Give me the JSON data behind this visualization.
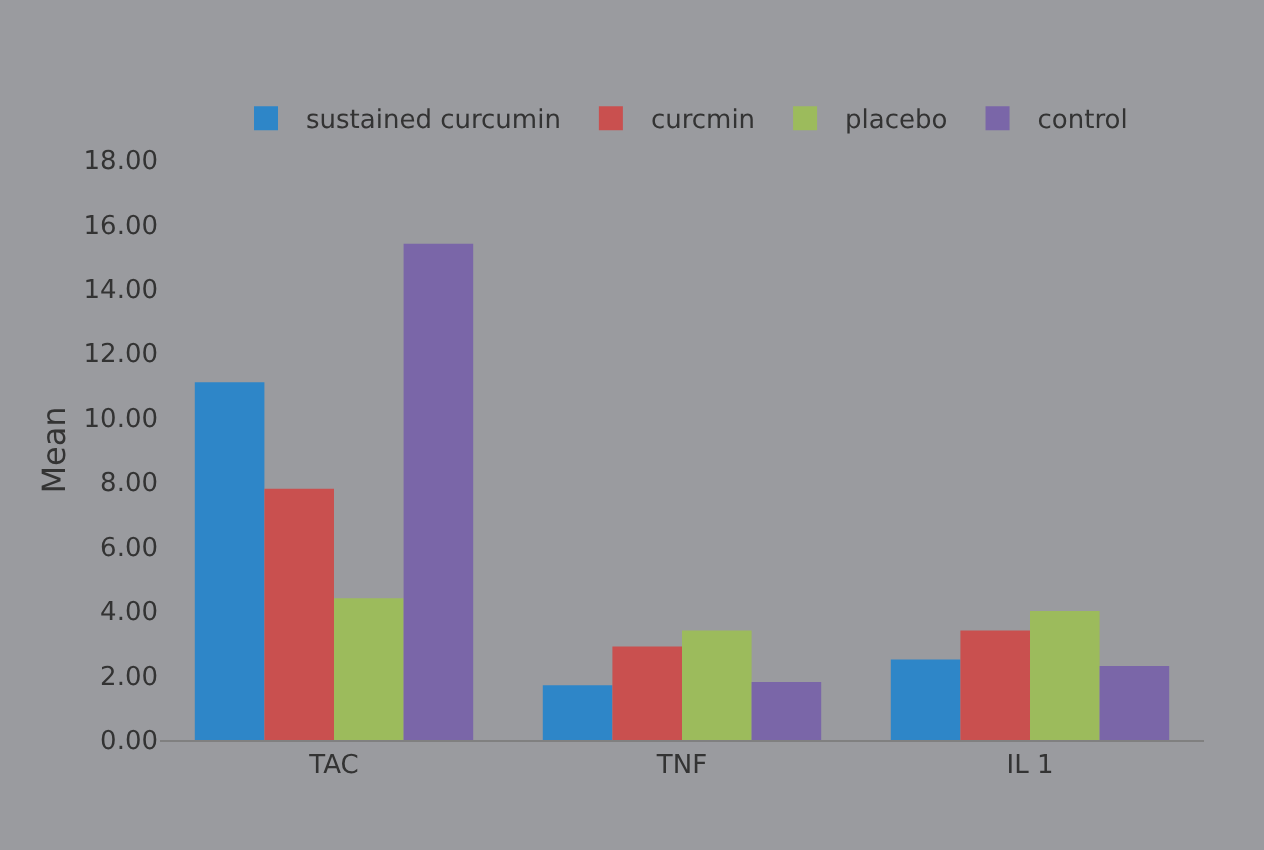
{
  "chart_data": {
    "type": "bar",
    "ylabel": "Mean",
    "categories": [
      "TAC",
      "TNF",
      "IL 1"
    ],
    "series": [
      {
        "name": "sustained curcumin",
        "color": "#2e86c8",
        "values": [
          11.1,
          1.7,
          2.5
        ]
      },
      {
        "name": "curcmin",
        "color": "#c9504f",
        "values": [
          7.8,
          2.9,
          3.4
        ]
      },
      {
        "name": "placebo",
        "color": "#9cbb5c",
        "values": [
          4.4,
          3.4,
          4.0
        ]
      },
      {
        "name": "control",
        "color": "#7a66a8",
        "values": [
          15.4,
          1.8,
          2.3
        ]
      }
    ],
    "ylim": [
      0,
      18
    ],
    "yticks": [
      {
        "value": 0,
        "label": "0.00"
      },
      {
        "value": 2,
        "label": "2.00"
      },
      {
        "value": 4,
        "label": "4.00"
      },
      {
        "value": 6,
        "label": "6.00"
      },
      {
        "value": 8,
        "label": "8.00"
      },
      {
        "value": 10,
        "label": "10.00"
      },
      {
        "value": 12,
        "label": "12.00"
      },
      {
        "value": 14,
        "label": "14.00"
      },
      {
        "value": 16,
        "label": "16.00"
      },
      {
        "value": 18,
        "label": "18.00"
      }
    ],
    "grid": false,
    "legend": "top"
  }
}
